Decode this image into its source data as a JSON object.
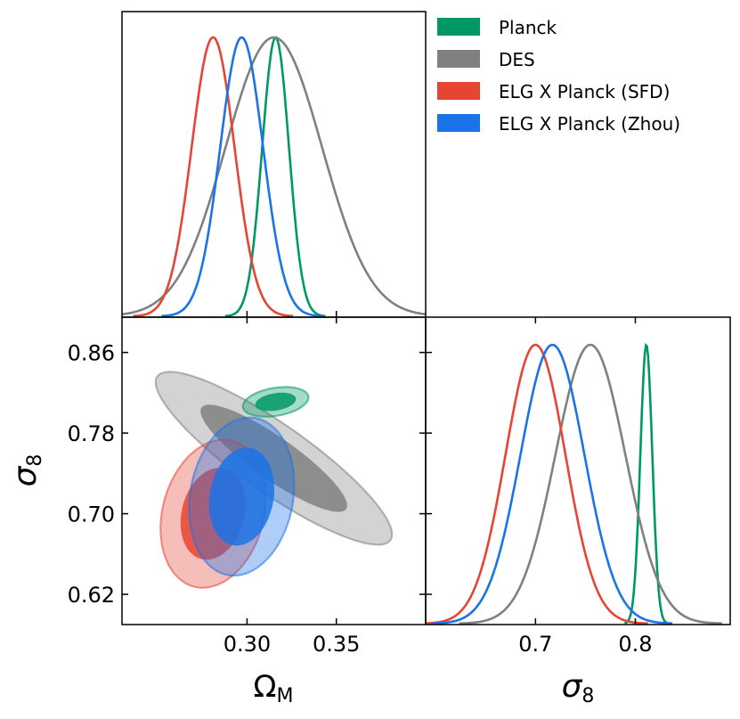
{
  "chart_data": {
    "type": "triangle-corner-plot",
    "parameters": [
      "Omega_M",
      "sigma_8"
    ],
    "axis_labels": {
      "omega_m": {
        "main": "Ω",
        "sub": "M"
      },
      "sigma8": {
        "main": "σ",
        "sub": "8"
      }
    },
    "omega_m_range": [
      0.23,
      0.4
    ],
    "sigma8_range": [
      0.59,
      0.895
    ],
    "omega_m_ticks": [
      {
        "v": 0.3,
        "label": "0.30"
      },
      {
        "v": 0.35,
        "label": "0.35"
      }
    ],
    "sigma8_left_ticks": [
      {
        "v": 0.86,
        "label": "0.86"
      },
      {
        "v": 0.78,
        "label": "0.78"
      },
      {
        "v": 0.7,
        "label": "0.70"
      },
      {
        "v": 0.62,
        "label": "0.62"
      }
    ],
    "sigma8_bottom_ticks": [
      {
        "v": 0.7,
        "label": "0.7"
      },
      {
        "v": 0.8,
        "label": "0.8"
      }
    ],
    "series": [
      {
        "name": "Planck",
        "color": "#009966",
        "omega_m": {
          "mean": 0.316,
          "sd": 0.0075
        },
        "sigma8": {
          "mean": 0.811,
          "sd": 0.006
        },
        "rho": 0.3
      },
      {
        "name": "DES",
        "color": "#808080",
        "omega_m": {
          "mean": 0.315,
          "sd": 0.027
        },
        "sigma8": {
          "mean": 0.755,
          "sd": 0.035
        },
        "rho": -0.88
      },
      {
        "name": "ELG X Planck (SFD)",
        "color": "#e64533",
        "omega_m": {
          "mean": 0.281,
          "sd": 0.012
        },
        "sigma8": {
          "mean": 0.7,
          "sd": 0.03
        },
        "rho": 0.2
      },
      {
        "name": "ELG X Planck (Zhou)",
        "color": "#1a73e8",
        "omega_m": {
          "mean": 0.297,
          "sd": 0.012
        },
        "sigma8": {
          "mean": 0.717,
          "sd": 0.032
        },
        "rho": 0.15
      }
    ]
  }
}
